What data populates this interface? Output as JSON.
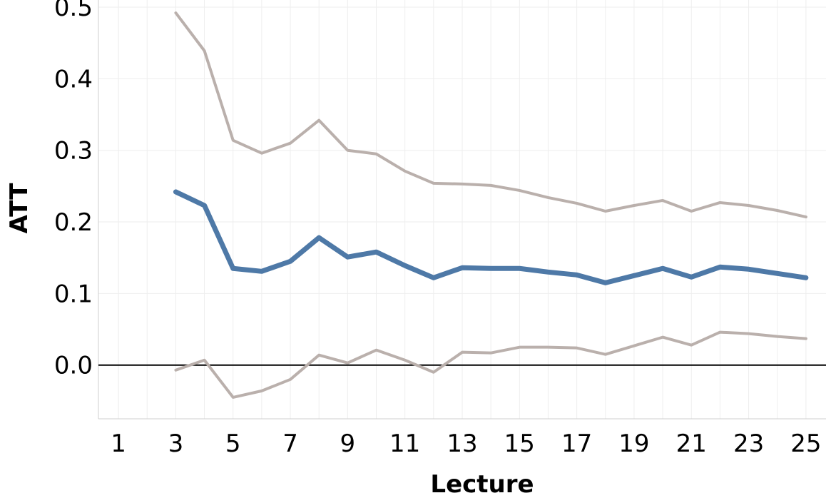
{
  "chart_data": {
    "type": "line",
    "title": "",
    "xlabel": "Lecture",
    "ylabel": "ATT",
    "xlim": [
      0.3,
      25.7
    ],
    "ylim": [
      -0.075,
      0.51
    ],
    "x_ticks": [
      1,
      3,
      5,
      7,
      9,
      11,
      13,
      15,
      17,
      19,
      21,
      23,
      25
    ],
    "y_ticks": [
      0.0,
      0.1,
      0.2,
      0.3,
      0.4,
      0.5
    ],
    "y_tick_labels": [
      "0.0",
      "0.1",
      "0.2",
      "0.3",
      "0.4",
      "0.5"
    ],
    "grid": true,
    "reference_line_y": 0,
    "x": [
      3,
      4,
      5,
      6,
      7,
      8,
      9,
      10,
      11,
      12,
      13,
      14,
      15,
      16,
      17,
      18,
      19,
      20,
      21,
      22,
      23,
      24,
      25
    ],
    "series": [
      {
        "role": "estimate",
        "color": "#4e79a7",
        "values": [
          0.242,
          0.223,
          0.135,
          0.131,
          0.145,
          0.178,
          0.151,
          0.158,
          0.139,
          0.122,
          0.136,
          0.135,
          0.135,
          0.13,
          0.126,
          0.115,
          0.125,
          0.135,
          0.123,
          0.137,
          0.134,
          0.128,
          0.122
        ]
      },
      {
        "role": "upper-bound",
        "color": "#bab0ac",
        "values": [
          0.492,
          0.439,
          0.314,
          0.296,
          0.31,
          0.342,
          0.3,
          0.295,
          0.271,
          0.254,
          0.253,
          0.251,
          0.244,
          0.234,
          0.226,
          0.215,
          0.223,
          0.23,
          0.215,
          0.227,
          0.223,
          0.216,
          0.207
        ]
      },
      {
        "role": "lower-bound",
        "color": "#bab0ac",
        "values": [
          -0.007,
          0.007,
          -0.045,
          -0.036,
          -0.02,
          0.014,
          0.003,
          0.021,
          0.007,
          -0.01,
          0.018,
          0.017,
          0.025,
          0.025,
          0.024,
          0.015,
          0.027,
          0.039,
          0.028,
          0.046,
          0.044,
          0.04,
          0.037
        ]
      }
    ]
  }
}
